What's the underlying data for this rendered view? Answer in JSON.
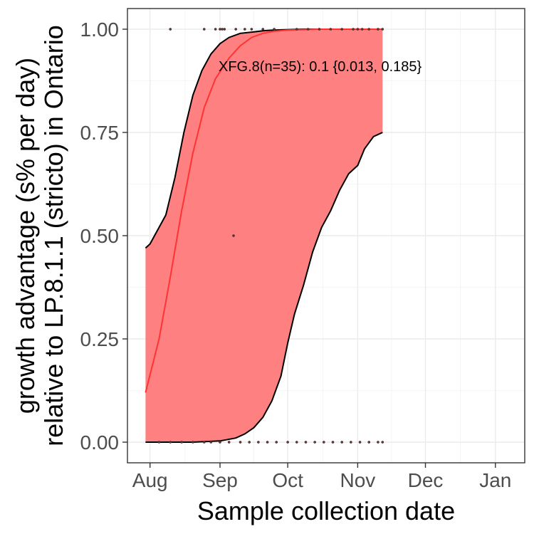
{
  "chart_data": {
    "type": "line",
    "title": "",
    "xlabel": "Sample collection date",
    "ylabel_line1": "growth advantage (s% per day)",
    "ylabel_line2": "relative to LP.8.1.1 (stricto) in Ontario",
    "x_ticks": [
      {
        "date": "2025-08-01",
        "label": "Aug"
      },
      {
        "date": "2025-09-01",
        "label": "Sep"
      },
      {
        "date": "2025-10-01",
        "label": "Oct"
      },
      {
        "date": "2025-11-01",
        "label": "Nov"
      },
      {
        "date": "2025-12-01",
        "label": "Dec"
      },
      {
        "date": "2026-01-01",
        "label": "Jan"
      }
    ],
    "xlim": [
      "2025-07-22",
      "2026-01-14"
    ],
    "y_ticks": [
      {
        "value": 0,
        "label": "0.00"
      },
      {
        "value": 0.25,
        "label": "0.25"
      },
      {
        "value": 0.5,
        "label": "0.50"
      },
      {
        "value": 0.75,
        "label": "0.75"
      },
      {
        "value": 1,
        "label": "1.00"
      }
    ],
    "ylim": [
      -0.05,
      1.05
    ],
    "grid": true,
    "colors": {
      "ribbon": "#ff8080",
      "fit_line": "#ff3333",
      "bound_line": "#000000",
      "points": "#5a3a3a"
    },
    "annotation": {
      "text": "XFG.8(n=35): 0.1 {0.013, 0.185}",
      "x": "2025-09-01",
      "y": 0.91
    },
    "series": [
      {
        "role": "fit",
        "x": [
          "2025-07-30",
          "2025-08-05",
          "2025-08-10",
          "2025-08-15",
          "2025-08-20",
          "2025-08-25",
          "2025-08-30",
          "2025-09-05",
          "2025-09-10",
          "2025-09-15",
          "2025-09-20",
          "2025-09-25",
          "2025-10-01",
          "2025-10-08",
          "2025-10-15",
          "2025-10-22",
          "2025-10-29",
          "2025-11-05",
          "2025-11-12"
        ],
        "y": [
          0.12,
          0.25,
          0.4,
          0.56,
          0.7,
          0.81,
          0.88,
          0.93,
          0.96,
          0.98,
          0.99,
          0.995,
          0.998,
          0.999,
          1.0,
          1.0,
          1.0,
          1.0,
          1.0
        ]
      },
      {
        "role": "upper",
        "x": [
          "2025-07-30",
          "2025-08-01",
          "2025-08-05",
          "2025-08-08",
          "2025-08-12",
          "2025-08-16",
          "2025-08-20",
          "2025-08-24",
          "2025-08-28",
          "2025-09-01",
          "2025-09-05",
          "2025-09-10",
          "2025-09-15",
          "2025-09-20",
          "2025-09-25",
          "2025-10-01",
          "2025-10-08",
          "2025-10-15",
          "2025-10-22",
          "2025-10-29",
          "2025-11-05",
          "2025-11-12"
        ],
        "y": [
          0.47,
          0.48,
          0.52,
          0.55,
          0.64,
          0.75,
          0.84,
          0.9,
          0.94,
          0.965,
          0.98,
          0.99,
          0.993,
          0.996,
          0.998,
          0.999,
          1.0,
          1.0,
          1.0,
          1.0,
          1.0,
          1.0
        ]
      },
      {
        "role": "lower",
        "x": [
          "2025-07-30",
          "2025-08-20",
          "2025-09-01",
          "2025-09-08",
          "2025-09-12",
          "2025-09-16",
          "2025-09-20",
          "2025-09-24",
          "2025-09-28",
          "2025-10-01",
          "2025-10-04",
          "2025-10-08",
          "2025-10-12",
          "2025-10-16",
          "2025-10-20",
          "2025-10-24",
          "2025-10-28",
          "2025-11-01",
          "2025-11-04",
          "2025-11-08",
          "2025-11-12"
        ],
        "y": [
          0.0,
          0.0,
          0.003,
          0.01,
          0.02,
          0.035,
          0.06,
          0.1,
          0.16,
          0.24,
          0.31,
          0.38,
          0.46,
          0.52,
          0.56,
          0.61,
          0.65,
          0.67,
          0.71,
          0.74,
          0.75
        ]
      },
      {
        "role": "observations",
        "x": [
          "2025-08-10",
          "2025-08-25",
          "2025-08-30",
          "2025-09-01",
          "2025-09-02",
          "2025-09-03",
          "2025-09-08",
          "2025-09-12",
          "2025-09-15",
          "2025-09-20",
          "2025-09-25",
          "2025-10-05",
          "2025-10-10",
          "2025-10-15",
          "2025-10-20",
          "2025-10-25",
          "2025-10-30",
          "2025-11-01",
          "2025-11-03",
          "2025-11-06",
          "2025-11-10",
          "2025-11-12",
          "2025-09-07",
          "2025-08-05",
          "2025-08-10",
          "2025-08-15",
          "2025-08-20",
          "2025-08-25",
          "2025-08-28",
          "2025-09-01",
          "2025-09-05",
          "2025-09-10",
          "2025-09-14",
          "2025-09-18",
          "2025-09-22",
          "2025-09-26",
          "2025-10-01",
          "2025-10-05",
          "2025-10-09",
          "2025-10-13",
          "2025-10-17",
          "2025-10-21",
          "2025-10-25",
          "2025-10-29",
          "2025-11-02",
          "2025-11-06",
          "2025-11-10",
          "2025-11-12"
        ],
        "y": [
          1,
          1,
          1,
          1,
          1,
          1,
          1,
          1,
          1,
          1,
          1,
          1,
          1,
          1,
          1,
          1,
          1,
          1,
          1,
          1,
          1,
          1,
          0.5,
          0,
          0,
          0,
          0,
          0,
          0,
          0,
          0,
          0,
          0,
          0,
          0,
          0,
          0,
          0,
          0,
          0,
          0,
          0,
          0,
          0,
          0,
          0,
          0,
          0
        ]
      }
    ]
  }
}
